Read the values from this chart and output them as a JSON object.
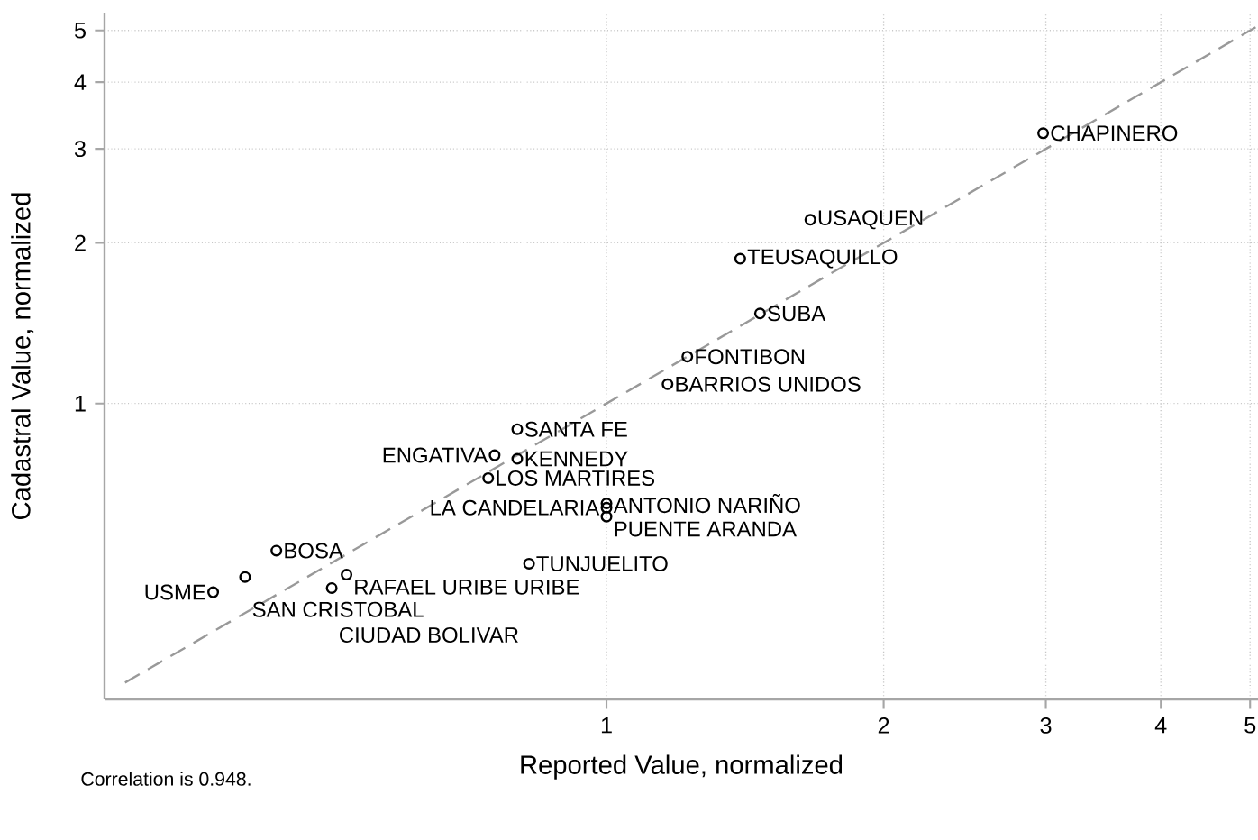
{
  "chart_data": {
    "type": "scatter",
    "xlabel": "Reported Value, normalized",
    "ylabel": "Cadastral Value, normalized",
    "annotations": [
      "Correlation is 0.948."
    ],
    "log": "xy",
    "grid": true,
    "marker": "circle",
    "xlim": [
      0.285,
      5.1
    ],
    "ylim": [
      0.279,
      5.4
    ],
    "xticks": [
      1,
      2,
      3,
      4,
      5
    ],
    "yticks": [
      1,
      2,
      3,
      4,
      5
    ],
    "series": [
      {
        "type": "line",
        "color": "#999999",
        "line_style": "dashed",
        "marker": "none",
        "x": [
          0.3,
          5.07
        ],
        "values": [
          0.3,
          5.07
        ]
      },
      {
        "name": "CHAPINERO",
        "color": "#000000",
        "x": [
          2.98
        ],
        "values": [
          3.21
        ]
      },
      {
        "name": "USAQUEN",
        "color": "#000000",
        "x": [
          1.665
        ],
        "values": [
          2.21
        ]
      },
      {
        "name": "TEUSAQUILLO",
        "color": "#000000",
        "x": [
          1.397
        ],
        "values": [
          1.868
        ]
      },
      {
        "name": "SUBA",
        "color": "#000000",
        "x": [
          1.468
        ],
        "values": [
          1.475
        ]
      },
      {
        "name": "FONTIBON",
        "color": "#000000",
        "x": [
          1.224
        ],
        "values": [
          1.224
        ]
      },
      {
        "name": "BARRIOS UNIDOS",
        "color": "#000000",
        "x": [
          1.165
        ],
        "values": [
          1.087
        ]
      },
      {
        "name": "SANTA FE",
        "color": "#000000",
        "x": [
          0.8
        ],
        "values": [
          0.895
        ]
      },
      {
        "name": "ENGATIVA",
        "color": "#000000",
        "x": [
          0.756
        ],
        "values": [
          0.8
        ]
      },
      {
        "name": "KENNEDY",
        "color": "#000000",
        "x": [
          0.8
        ],
        "values": [
          0.788
        ]
      },
      {
        "name": "LOS MARTIRES",
        "color": "#000000",
        "x": [
          0.744
        ],
        "values": [
          0.725
        ]
      },
      {
        "name": "ANTONIO NARIÑO",
        "color": "#000000",
        "x": [
          1.0
        ],
        "values": [
          0.65
        ]
      },
      {
        "name": "LA CANDELARIA",
        "color": "#000000",
        "x": [
          1.0
        ],
        "values": [
          0.638
        ]
      },
      {
        "name": "PUENTE ARANDA",
        "color": "#000000",
        "x": [
          1.0
        ],
        "values": [
          0.614
        ]
      },
      {
        "name": "BOSA",
        "color": "#000000",
        "x": [
          0.438
        ],
        "values": [
          0.53
        ]
      },
      {
        "name": "SAN CRISTOBAL",
        "color": "#000000",
        "x": [
          0.405
        ],
        "values": [
          0.473
        ]
      },
      {
        "name": "RAFAEL URIBE URIBE",
        "color": "#000000",
        "x": [
          0.522
        ],
        "values": [
          0.478
        ]
      },
      {
        "name": "CIUDAD BOLIVAR",
        "color": "#000000",
        "x": [
          0.503
        ],
        "values": [
          0.451
        ]
      },
      {
        "name": "USME",
        "color": "#000000",
        "x": [
          0.374
        ],
        "values": [
          0.443
        ]
      },
      {
        "name": "TUNJUELITO",
        "color": "#000000",
        "x": [
          0.824
        ],
        "values": [
          0.501
        ]
      }
    ]
  }
}
